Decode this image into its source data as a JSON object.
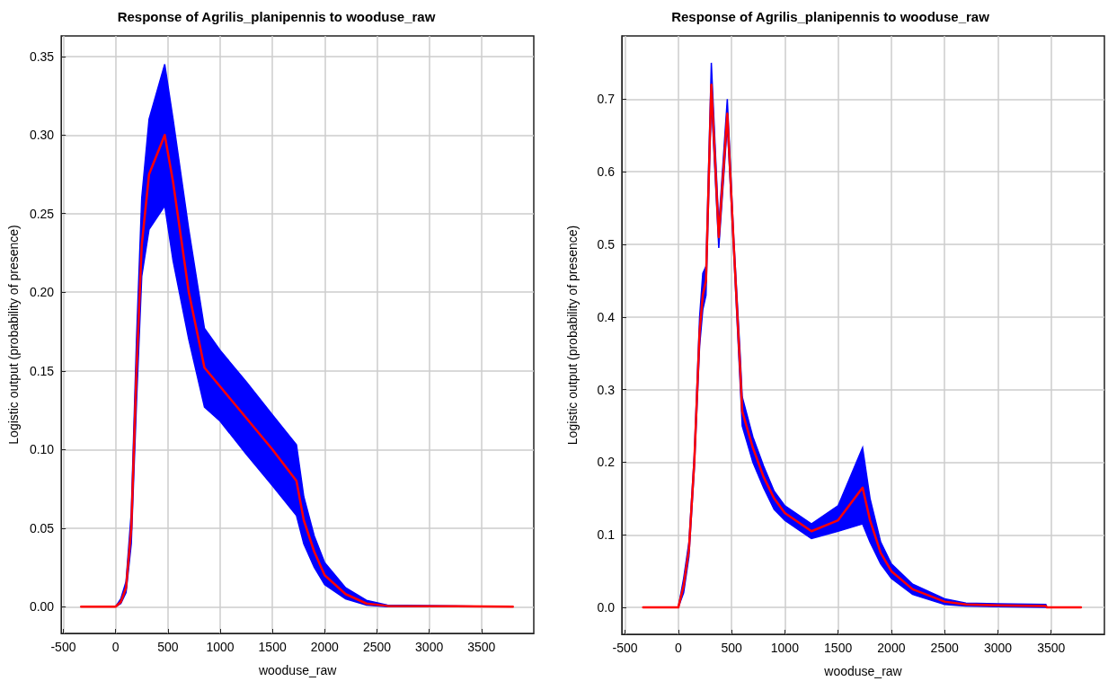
{
  "chart_data": [
    {
      "type": "line",
      "title": "Response of Agrilis_planipennis to wooduse_raw",
      "xlabel": "wooduse_raw",
      "ylabel": "Logistic output (probability of presence)",
      "x": [
        -330,
        0,
        50,
        100,
        150,
        200,
        250,
        320,
        470,
        550,
        700,
        850,
        1000,
        1250,
        1500,
        1730,
        1800,
        1900,
        2000,
        2200,
        2400,
        2600,
        3800
      ],
      "series": [
        {
          "color": "#ff0000",
          "values": [
            0,
            0,
            0.003,
            0.012,
            0.05,
            0.15,
            0.23,
            0.275,
            0.3,
            0.27,
            0.2,
            0.152,
            0.14,
            0.12,
            0.1,
            0.08,
            0.055,
            0.035,
            0.02,
            0.008,
            0.002,
            0.0005,
            0
          ],
          "lower": [
            0,
            0,
            0.002,
            0.009,
            0.04,
            0.13,
            0.21,
            0.24,
            0.255,
            0.22,
            0.17,
            0.127,
            0.118,
            0.097,
            0.077,
            0.058,
            0.04,
            0.025,
            0.014,
            0.005,
            0.001,
            0,
            0
          ],
          "upper": [
            0,
            0,
            0.005,
            0.016,
            0.06,
            0.17,
            0.26,
            0.31,
            0.345,
            0.31,
            0.24,
            0.177,
            0.163,
            0.143,
            0.122,
            0.103,
            0.07,
            0.045,
            0.028,
            0.012,
            0.004,
            0.001,
            0
          ]
        }
      ],
      "xlim": [
        -520,
        4000
      ],
      "xticks": [
        -500,
        0,
        500,
        1000,
        1500,
        2000,
        2500,
        3000,
        3500
      ],
      "ylim": [
        -0.017,
        0.363
      ],
      "yticks": [
        {
          "value": 0,
          "label": "0.00"
        },
        0.05,
        {
          "value": 0.1,
          "label": "0.10"
        },
        0.15,
        {
          "value": 0.2,
          "label": "0.20"
        },
        0.25,
        {
          "value": 0.3,
          "label": "0.30"
        },
        0.35
      ],
      "grid": true,
      "marker": "none"
    },
    {
      "type": "line",
      "title": "Response of Agrilis_planipennis to wooduse_raw",
      "xlabel": "wooduse_raw",
      "ylabel": "Logistic output (probability of presence)",
      "x": [
        -330,
        0,
        50,
        100,
        150,
        200,
        230,
        260,
        310,
        380,
        460,
        520,
        580,
        600,
        700,
        800,
        900,
        1000,
        1250,
        1500,
        1730,
        1800,
        1900,
        2000,
        2200,
        2500,
        2700,
        3000,
        3450,
        3460,
        3780
      ],
      "series": [
        {
          "color": "#ff0000",
          "values": [
            0,
            0,
            0.03,
            0.08,
            0.2,
            0.38,
            0.43,
            0.45,
            0.72,
            0.51,
            0.68,
            0.5,
            0.33,
            0.27,
            0.22,
            0.18,
            0.15,
            0.13,
            0.105,
            0.12,
            0.165,
            0.12,
            0.075,
            0.05,
            0.025,
            0.008,
            0.004,
            0.003,
            0.002,
            0,
            0
          ],
          "lower": [
            0,
            0,
            0.02,
            0.07,
            0.19,
            0.36,
            0.41,
            0.43,
            0.7,
            0.495,
            0.665,
            0.49,
            0.31,
            0.25,
            0.2,
            0.165,
            0.135,
            0.12,
            0.095,
            0.105,
            0.115,
            0.09,
            0.06,
            0.04,
            0.018,
            0.004,
            0.002,
            0.001,
            0,
            0,
            0
          ],
          "upper": [
            0,
            0,
            0.04,
            0.09,
            0.21,
            0.4,
            0.46,
            0.47,
            0.75,
            0.525,
            0.7,
            0.51,
            0.35,
            0.29,
            0.235,
            0.195,
            0.16,
            0.14,
            0.115,
            0.14,
            0.22,
            0.15,
            0.09,
            0.06,
            0.032,
            0.012,
            0.006,
            0.005,
            0.004,
            0,
            0
          ]
        }
      ],
      "xlim": [
        -530,
        4000
      ],
      "xticks": [
        -500,
        0,
        500,
        1000,
        1500,
        2000,
        2500,
        3000,
        3500
      ],
      "ylim": [
        -0.037,
        0.787
      ],
      "yticks": [
        {
          "value": 0,
          "label": "0.0"
        },
        0.1,
        0.2,
        0.3,
        0.4,
        0.5,
        0.6,
        0.7
      ],
      "grid": true,
      "marker": "none"
    }
  ]
}
